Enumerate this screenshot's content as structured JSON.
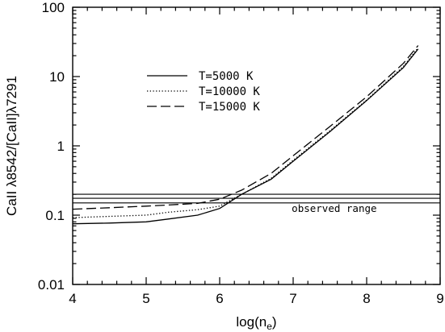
{
  "chart_data": {
    "type": "line",
    "xlabel_main": "log(n",
    "xlabel_sub": "e",
    "xlabel_close": ")",
    "ylabel": "CaII λ8542/[CaII]λ7291",
    "xlim": [
      4,
      9
    ],
    "ylim": [
      0.01,
      100
    ],
    "yscale": "log",
    "x_ticks": [
      {
        "value": 4,
        "label": "4"
      },
      {
        "value": 5,
        "label": "5"
      },
      {
        "value": 6,
        "label": "6"
      },
      {
        "value": 7,
        "label": "7"
      },
      {
        "value": 8,
        "label": "8"
      },
      {
        "value": 9,
        "label": "9"
      }
    ],
    "y_ticks": [
      {
        "value": 0.01,
        "label": "0.01"
      },
      {
        "value": 0.1,
        "label": "0.1"
      },
      {
        "value": 1,
        "label": "1"
      },
      {
        "value": 10,
        "label": "10"
      },
      {
        "value": 100,
        "label": "100"
      }
    ],
    "legend_position": "upper-left",
    "series": [
      {
        "name": "T=5000 K",
        "style": "solid",
        "x": [
          4.0,
          4.5,
          5.0,
          5.3,
          5.7,
          6.0,
          6.3,
          6.7,
          7.0,
          7.5,
          8.0,
          8.5,
          8.7
        ],
        "y": [
          0.075,
          0.077,
          0.08,
          0.088,
          0.1,
          0.125,
          0.2,
          0.33,
          0.6,
          1.6,
          4.5,
          13.5,
          25
        ]
      },
      {
        "name": "T=10000 K",
        "style": "dotted",
        "x": [
          4.0,
          4.5,
          5.0,
          5.3,
          5.7,
          6.0,
          6.3,
          6.7,
          7.0,
          7.5,
          8.0,
          8.5,
          8.7
        ],
        "y": [
          0.092,
          0.096,
          0.1,
          0.11,
          0.12,
          0.135,
          0.2,
          0.34,
          0.62,
          1.65,
          4.6,
          14,
          26
        ]
      },
      {
        "name": "T=15000 K",
        "style": "long-dash",
        "x": [
          4.0,
          4.5,
          5.0,
          5.3,
          5.7,
          6.0,
          6.3,
          6.7,
          7.0,
          7.5,
          8.0,
          8.5,
          8.7
        ],
        "y": [
          0.122,
          0.128,
          0.135,
          0.14,
          0.148,
          0.17,
          0.23,
          0.4,
          0.72,
          1.9,
          5.1,
          15.5,
          28
        ]
      }
    ],
    "reference_lines": [
      0.2,
      0.175,
      0.15
    ],
    "annotation": {
      "text": "observed range",
      "x": 6.98,
      "y": 0.112
    }
  }
}
